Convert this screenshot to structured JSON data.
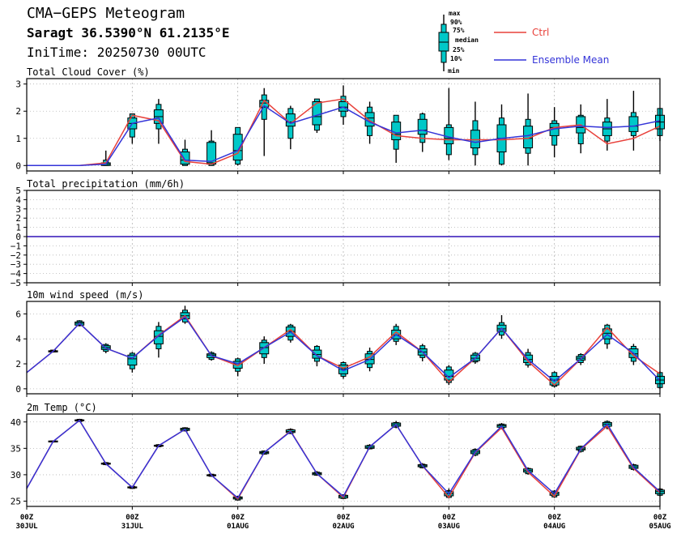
{
  "header": {
    "title": "CMA−GEPS Meteogram",
    "location": "Saragt 36.5390°N 61.2135°E",
    "init_time": "IniTime: 20250730 00UTC"
  },
  "legend": {
    "box_labels": [
      "max",
      "90%",
      "75%",
      "median",
      "25%",
      "10%",
      "min"
    ],
    "ctrl_label": "Ctrl",
    "mean_label": "Ensemble Mean",
    "ctrl_color": "#e8403a",
    "mean_color": "#3434d8",
    "box_color": "#00c8c8"
  },
  "x_axis": {
    "ticks": [
      {
        "hour": 0,
        "top": "00Z",
        "bottom": "30JUL"
      },
      {
        "hour": 24,
        "top": "00Z",
        "bottom": "31JUL"
      },
      {
        "hour": 48,
        "top": "00Z",
        "bottom": "01AUG"
      },
      {
        "hour": 72,
        "top": "00Z",
        "bottom": "02AUG"
      },
      {
        "hour": 96,
        "top": "00Z",
        "bottom": "03AUG"
      },
      {
        "hour": 120,
        "top": "00Z",
        "bottom": "04AUG"
      },
      {
        "hour": 144,
        "top": "00Z",
        "bottom": "05AUG"
      }
    ]
  },
  "chart_data": [
    {
      "type": "boxplot-line",
      "title": "Total Cloud Cover (%)",
      "ylim": [
        -0.2,
        3.2
      ],
      "yticks": [
        "0",
        "1",
        "2",
        "3"
      ],
      "hours": [
        0,
        6,
        12,
        18,
        24,
        30,
        36,
        42,
        48,
        54,
        60,
        66,
        72,
        78,
        84,
        90,
        96,
        102,
        108,
        114,
        120,
        126,
        132,
        138,
        144
      ],
      "ctrl": [
        0,
        0,
        0,
        0.1,
        1.85,
        1.65,
        0.15,
        0.05,
        0.45,
        2.4,
        1.55,
        2.3,
        2.45,
        1.65,
        1.1,
        1.0,
        0.95,
        0.95,
        0.95,
        1.0,
        1.4,
        1.5,
        0.8,
        1.0,
        1.45
      ],
      "mean": [
        0,
        0,
        0,
        0.05,
        1.55,
        1.75,
        0.2,
        0.15,
        0.55,
        2.2,
        1.55,
        1.85,
        2.15,
        1.6,
        1.2,
        1.3,
        1.05,
        0.85,
        1.0,
        1.1,
        1.35,
        1.45,
        1.4,
        1.45,
        1.65
      ],
      "boxes": [
        null,
        null,
        null,
        [
          0,
          0,
          0,
          0.05,
          0.1,
          0.2,
          0.55
        ],
        [
          0.8,
          1.05,
          1.35,
          1.55,
          1.75,
          1.9,
          1.9
        ],
        [
          0.8,
          1.35,
          1.55,
          1.8,
          2.05,
          2.25,
          2.45
        ],
        [
          0,
          0,
          0.05,
          0.2,
          0.5,
          0.6,
          0.95
        ],
        [
          0,
          0,
          0.05,
          0.1,
          0.85,
          0.9,
          1.3
        ],
        [
          0,
          0.05,
          0.2,
          0.55,
          1.15,
          1.4,
          1.4
        ],
        [
          0.35,
          1.7,
          2.15,
          2.3,
          2.4,
          2.6,
          2.85
        ],
        [
          0.6,
          1.0,
          1.45,
          1.6,
          1.9,
          2.1,
          2.2
        ],
        [
          1.2,
          1.3,
          1.5,
          1.8,
          2.35,
          2.45,
          2.45
        ],
        [
          1.5,
          1.8,
          2.0,
          2.15,
          2.35,
          2.55,
          2.95
        ],
        [
          0.8,
          1.1,
          1.45,
          1.75,
          1.95,
          2.15,
          2.35
        ],
        [
          0.1,
          0.6,
          0.95,
          1.15,
          1.6,
          1.85,
          1.85
        ],
        [
          0.5,
          0.85,
          1.15,
          1.3,
          1.7,
          1.9,
          1.95
        ],
        [
          0.2,
          0.4,
          0.8,
          1.0,
          1.4,
          1.5,
          2.85
        ],
        [
          0,
          0.4,
          0.65,
          0.95,
          1.3,
          1.65,
          2.35
        ],
        [
          0,
          0.05,
          0.5,
          1.0,
          1.5,
          1.75,
          2.25
        ],
        [
          0,
          0.45,
          0.65,
          1.0,
          1.45,
          1.7,
          2.65
        ],
        [
          0.3,
          0.75,
          1.1,
          1.4,
          1.55,
          1.65,
          2.15
        ],
        [
          0.45,
          0.8,
          1.2,
          1.4,
          1.8,
          1.85,
          2.25
        ],
        [
          0.55,
          0.9,
          1.1,
          1.35,
          1.6,
          1.75,
          2.45
        ],
        [
          0.55,
          1.1,
          1.25,
          1.45,
          1.8,
          1.95,
          2.75
        ],
        [
          0.9,
          1.1,
          1.35,
          1.6,
          1.85,
          2.1,
          2.1
        ]
      ]
    },
    {
      "type": "line",
      "title": "Total precipitation (mm/6h)",
      "ylim": [
        -5,
        5
      ],
      "yticks": [
        "−5",
        "−4",
        "−3",
        "−2",
        "−1",
        "0",
        "1",
        "2",
        "3",
        "4",
        "5"
      ],
      "hours": [
        0,
        144
      ],
      "ctrl": [
        0,
        0
      ],
      "mean": [
        0,
        0
      ],
      "boxes": []
    },
    {
      "type": "boxplot-line",
      "title": "10m wind speed (m/s)",
      "ylim": [
        -0.4,
        7
      ],
      "yticks": [
        "0",
        "2",
        "4",
        "6"
      ],
      "hours": [
        0,
        6,
        12,
        18,
        24,
        30,
        36,
        42,
        48,
        54,
        60,
        66,
        72,
        78,
        84,
        90,
        96,
        102,
        108,
        114,
        120,
        126,
        132,
        138,
        144
      ],
      "ctrl": [
        1.3,
        3.0,
        5.25,
        3.25,
        2.45,
        4.3,
        5.85,
        2.65,
        1.85,
        3.3,
        4.75,
        2.65,
        1.65,
        2.55,
        4.55,
        2.95,
        0.55,
        2.45,
        4.85,
        2.2,
        0.3,
        2.4,
        4.9,
        2.65,
        1.2
      ],
      "mean": [
        1.3,
        3.0,
        5.25,
        3.25,
        2.45,
        4.25,
        5.75,
        2.65,
        2.0,
        3.3,
        4.55,
        2.65,
        1.45,
        2.35,
        4.35,
        2.95,
        0.9,
        2.45,
        4.85,
        2.35,
        0.6,
        2.4,
        4.35,
        2.85,
        0.65
      ],
      "boxes": [
        null,
        [
          2.9,
          2.95,
          2.95,
          3.0,
          3.05,
          3.1,
          3.1
        ],
        [
          5.0,
          5.05,
          5.1,
          5.25,
          5.35,
          5.45,
          5.5
        ],
        [
          2.85,
          3.0,
          3.15,
          3.3,
          3.45,
          3.55,
          3.65
        ],
        [
          1.3,
          1.6,
          1.9,
          2.4,
          2.7,
          2.85,
          2.95
        ],
        [
          2.5,
          3.2,
          3.6,
          4.2,
          4.65,
          5.0,
          5.35
        ],
        [
          5.2,
          5.35,
          5.6,
          5.85,
          6.1,
          6.3,
          6.65
        ],
        [
          2.25,
          2.35,
          2.5,
          2.7,
          2.8,
          2.9,
          3.0
        ],
        [
          1.0,
          1.4,
          1.65,
          2.0,
          2.2,
          2.4,
          2.5
        ],
        [
          2.0,
          2.5,
          2.8,
          3.3,
          3.7,
          3.9,
          4.2
        ],
        [
          3.7,
          3.9,
          4.2,
          4.6,
          4.95,
          5.1,
          5.2
        ],
        [
          1.8,
          2.2,
          2.45,
          2.75,
          3.1,
          3.4,
          3.5
        ],
        [
          0.8,
          1.0,
          1.2,
          1.6,
          1.9,
          2.1,
          2.2
        ],
        [
          1.4,
          1.7,
          2.0,
          2.35,
          2.8,
          3.0,
          3.3
        ],
        [
          3.5,
          3.8,
          4.0,
          4.3,
          4.7,
          5.0,
          5.2
        ],
        [
          2.2,
          2.5,
          2.7,
          2.95,
          3.2,
          3.45,
          3.6
        ],
        [
          0.3,
          0.5,
          0.7,
          1.0,
          1.5,
          1.75,
          1.9
        ],
        [
          2.0,
          2.15,
          2.25,
          2.45,
          2.7,
          2.85,
          2.95
        ],
        [
          4.0,
          4.3,
          4.6,
          4.8,
          5.1,
          5.3,
          5.9
        ],
        [
          1.7,
          1.9,
          2.1,
          2.35,
          2.7,
          2.9,
          3.2
        ],
        [
          0.1,
          0.2,
          0.3,
          0.7,
          1.0,
          1.3,
          1.4
        ],
        [
          1.9,
          2.1,
          2.3,
          2.45,
          2.6,
          2.75,
          2.85
        ],
        [
          3.2,
          3.6,
          4.0,
          4.45,
          4.8,
          5.1,
          5.2
        ],
        [
          1.9,
          2.2,
          2.5,
          2.8,
          3.2,
          3.4,
          3.6
        ],
        [
          0,
          0.1,
          0.4,
          0.7,
          1.0,
          1.3,
          1.4
        ]
      ]
    },
    {
      "type": "boxplot-line",
      "title": "2m Temp (°C)",
      "ylim": [
        24,
        41.5
      ],
      "yticks": [
        "25",
        "30",
        "35",
        "40"
      ],
      "hours": [
        0,
        6,
        12,
        18,
        24,
        30,
        36,
        42,
        48,
        54,
        60,
        66,
        72,
        78,
        84,
        90,
        96,
        102,
        108,
        114,
        120,
        126,
        132,
        138,
        144
      ],
      "ctrl": [
        27.4,
        36.3,
        40.3,
        32.1,
        27.6,
        35.5,
        38.6,
        29.9,
        25.4,
        34.2,
        38.3,
        30.2,
        25.7,
        35.3,
        39.5,
        31.7,
        25.7,
        34.2,
        38.9,
        30.5,
        25.9,
        34.8,
        39.2,
        31.2,
        26.6
      ],
      "mean": [
        27.4,
        36.3,
        40.3,
        32.1,
        27.6,
        35.5,
        38.6,
        29.9,
        25.6,
        34.2,
        38.2,
        30.2,
        25.9,
        35.3,
        39.5,
        31.7,
        26.4,
        34.3,
        39.2,
        30.8,
        26.4,
        34.9,
        39.6,
        31.4,
        26.8
      ],
      "boxes": [
        null,
        [
          36.1,
          36.2,
          36.2,
          36.3,
          36.4,
          36.4,
          36.5
        ],
        [
          40.0,
          40.1,
          40.2,
          40.3,
          40.4,
          40.5,
          40.6
        ],
        [
          31.8,
          31.9,
          32.0,
          32.1,
          32.2,
          32.3,
          32.4
        ],
        [
          27.3,
          27.4,
          27.5,
          27.6,
          27.7,
          27.8,
          27.9
        ],
        [
          35.2,
          35.3,
          35.4,
          35.5,
          35.6,
          35.7,
          35.8
        ],
        [
          38.2,
          38.3,
          38.4,
          38.6,
          38.8,
          38.9,
          39.0
        ],
        [
          29.6,
          29.7,
          29.8,
          29.9,
          30.0,
          30.1,
          30.2
        ],
        [
          25.1,
          25.2,
          25.4,
          25.6,
          25.8,
          25.9,
          26.0
        ],
        [
          33.8,
          33.9,
          34.0,
          34.2,
          34.4,
          34.5,
          34.6
        ],
        [
          37.7,
          37.8,
          38.0,
          38.2,
          38.5,
          38.6,
          38.8
        ],
        [
          29.8,
          29.9,
          30.0,
          30.2,
          30.4,
          30.5,
          30.7
        ],
        [
          25.4,
          25.5,
          25.6,
          25.9,
          26.1,
          26.2,
          26.3
        ],
        [
          34.8,
          34.9,
          35.0,
          35.2,
          35.5,
          35.6,
          35.8
        ],
        [
          38.8,
          39.0,
          39.2,
          39.5,
          39.8,
          39.9,
          40.2
        ],
        [
          31.2,
          31.3,
          31.5,
          31.7,
          31.9,
          32.0,
          32.2
        ],
        [
          25.5,
          25.7,
          26.0,
          26.4,
          26.8,
          27.0,
          27.4
        ],
        [
          33.5,
          33.7,
          34.0,
          34.3,
          34.6,
          34.8,
          35.0
        ],
        [
          38.6,
          38.8,
          39.0,
          39.3,
          39.5,
          39.6,
          39.8
        ],
        [
          30.0,
          30.2,
          30.5,
          30.8,
          31.1,
          31.2,
          31.4
        ],
        [
          25.6,
          25.8,
          26.1,
          26.4,
          26.7,
          26.9,
          27.1
        ],
        [
          34.2,
          34.4,
          34.7,
          34.9,
          35.2,
          35.4,
          35.5
        ],
        [
          38.6,
          38.9,
          39.2,
          39.6,
          39.9,
          40.1,
          40.3
        ],
        [
          30.8,
          31.0,
          31.2,
          31.5,
          31.8,
          31.9,
          32.1
        ],
        [
          25.9,
          26.1,
          26.4,
          26.8,
          27.1,
          27.3,
          27.5
        ]
      ]
    }
  ]
}
